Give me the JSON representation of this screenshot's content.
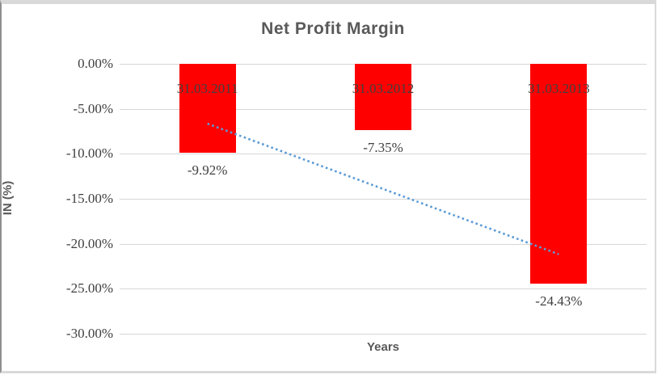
{
  "chart_data": {
    "type": "bar",
    "title": "Net Profit Margin",
    "categories": [
      "31.03.2011",
      "31.03.2012",
      "31.03.2013"
    ],
    "values": [
      -9.92,
      -7.35,
      -24.43
    ],
    "data_labels": [
      "-9.92%",
      "-7.35%",
      "-24.43%"
    ],
    "xlabel": "Years",
    "ylabel": "IN (%)",
    "ylim": [
      -30,
      0
    ],
    "ytick_step": 5,
    "yticks": [
      "0.00%",
      "-5.00%",
      "-10.00%",
      "-15.00%",
      "-20.00%",
      "-25.00%",
      "-30.00%"
    ],
    "grid": true,
    "legend": false,
    "bar_color": "#FF0000",
    "gridline_color": "#D6D6D6",
    "title_color": "#595959",
    "label_color": "#404040",
    "trendline": {
      "type": "linear",
      "style": "dotted",
      "color": "#5B9BD5",
      "endpoints_pct": [
        -6.65,
        -21.16
      ]
    }
  }
}
